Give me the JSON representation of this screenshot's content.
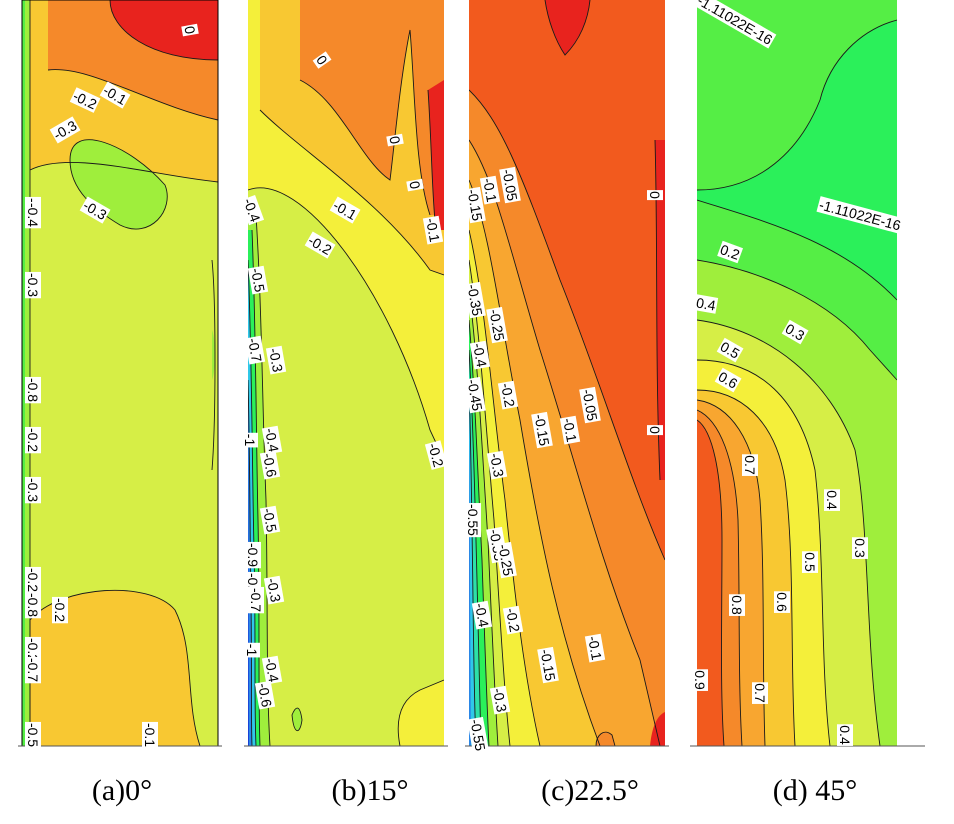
{
  "figure": {
    "panels": [
      {
        "id": "a",
        "caption": "(a)0°",
        "labels": [
          "0",
          "-0.1",
          "-0.2",
          "-0.3",
          "-0.3",
          "-0.3",
          "-0.4",
          "-0.3",
          "-0.8",
          "-0.2",
          "-0.3",
          "-0.2",
          "-0.8",
          "-0.2",
          "-0.2",
          "-0.7",
          "-0.5",
          "-0.1"
        ]
      },
      {
        "id": "b",
        "caption": "(b)15°",
        "labels": [
          "0",
          "0",
          "0",
          "-0.1",
          "-0.1",
          "-0.2",
          "-0.4",
          "-0.5",
          "-0.7",
          "-0.3",
          "-0.4",
          "-1",
          "-0.6",
          "-0.5",
          "-0.9",
          "-0.8",
          "-0.7",
          "-0.3",
          "-1",
          "-0.4",
          "-0.6",
          "-0.2"
        ]
      },
      {
        "id": "c",
        "caption": "(c)22.5°",
        "labels": [
          "0",
          "-0.05",
          "-0.1",
          "-0.15",
          "-0.35",
          "-0.25",
          "-0.4",
          "-0.45",
          "-0.2",
          "-0.05",
          "-0.15",
          "-0.1",
          "0",
          "-0.3",
          "-0.55",
          "-0.35",
          "-0.25",
          "-0.4",
          "-0.2",
          "-0.15",
          "-0.1",
          "-0.3",
          "-0.55"
        ]
      },
      {
        "id": "d",
        "caption": "(d) 45°",
        "labels": [
          "-1.11022E-16",
          "-1.11022E-16",
          "0.2",
          "0.4",
          "0.3",
          "0.5",
          "0.6",
          "0.7",
          "0.4",
          "0.5",
          "0.3",
          "0.8",
          "0.6",
          "0.7",
          "0.9",
          "0.4"
        ]
      }
    ],
    "colors": {
      "red": "#e8231e",
      "orange_red": "#f25a1e",
      "orange": "#f5892a",
      "light_orange": "#f8a630",
      "yellow_orange": "#f8c832",
      "yellow": "#f4ef3a",
      "yellow_green": "#d6ee46",
      "light_green": "#9fee3c",
      "green": "#55ee45",
      "bright_green": "#2bf05a",
      "teal": "#2de0a8",
      "cyan": "#30c8e8",
      "blue": "#2a86e6",
      "dark_blue": "#1a3fd6"
    }
  }
}
